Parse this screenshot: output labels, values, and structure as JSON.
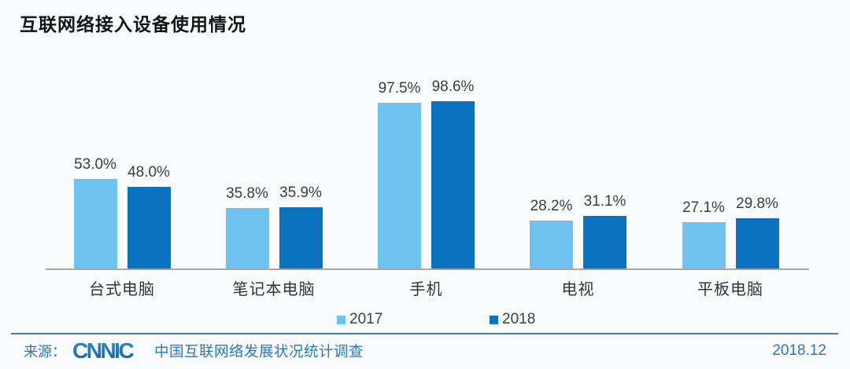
{
  "header": {
    "title": "互联网络接入设备使用情况"
  },
  "chart_data": {
    "type": "bar",
    "title": "互联网络接入设备使用情况",
    "categories": [
      "台式电脑",
      "笔记本电脑",
      "手机",
      "电视",
      "平板电脑"
    ],
    "series": [
      {
        "name": "2017",
        "color": "#6ec3f0",
        "values": [
          53.0,
          35.8,
          97.5,
          28.2,
          27.1
        ]
      },
      {
        "name": "2018",
        "color": "#0b72c0",
        "values": [
          48.0,
          35.9,
          98.6,
          31.1,
          29.8
        ]
      }
    ],
    "value_suffix": "%",
    "value_decimals": 1,
    "xlabel": "",
    "ylabel": "",
    "ylim": [
      0,
      100
    ],
    "grid": false,
    "legend_position": "bottom",
    "data_labels_shown": true
  },
  "colors": {
    "series_2017": "#6ec3f0",
    "series_2018": "#0b72c0",
    "axis": "#a6a6a6",
    "separator": "#3e7ebd",
    "footer_blue": "#2e75b6"
  },
  "footer": {
    "source_label": "来源：",
    "logo": "CNNIC",
    "org_text": "中国互联网络发展状况统计调查",
    "date": "2018.12"
  }
}
